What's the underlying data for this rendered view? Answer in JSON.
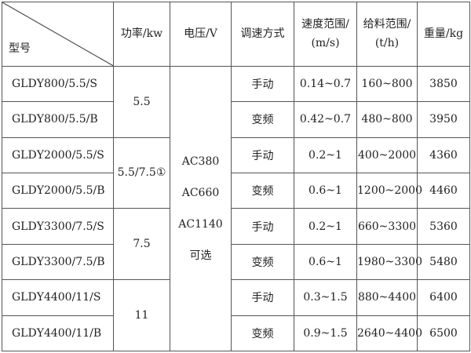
{
  "headers": {
    "model": "型号",
    "power": "功率/kw",
    "voltage": "电压/V",
    "speed_mode": "调速方式",
    "speed_range_1": "速度范围/",
    "speed_range_2": "(m/s)",
    "feed_range_1": "给料范围/",
    "feed_range_2": "(t/h)",
    "weight": "重量/kg"
  },
  "power_groups": [
    "5.5",
    "5.5/7.5①",
    "7.5",
    "11"
  ],
  "voltage": [
    "AC380",
    "AC660",
    "AC1140",
    "可选"
  ],
  "rows": [
    {
      "model": "GLDY800/5.5/S",
      "mode": "手动",
      "speed": "0.14~0.7",
      "feed": "160~800",
      "weight": "3850"
    },
    {
      "model": "GLDY800/5.5/B",
      "mode": "变频",
      "speed": "0.42~0.7",
      "feed": "480~800",
      "weight": "3950"
    },
    {
      "model": "GLDY2000/5.5/S",
      "mode": "手动",
      "speed": "0.2~1",
      "feed": "400~2000",
      "weight": "4360"
    },
    {
      "model": "GLDY2000/5.5/B",
      "mode": "变频",
      "speed": "0.6~1",
      "feed": "1200~2000",
      "weight": "4460"
    },
    {
      "model": "GLDY3300/7.5/S",
      "mode": "手动",
      "speed": "0.2~1",
      "feed": "660~3300",
      "weight": "5360"
    },
    {
      "model": "GLDY3300/7.5/B",
      "mode": "变频",
      "speed": "0.6~1",
      "feed": "1980~3300",
      "weight": "5480"
    },
    {
      "model": "GLDY4400/11/S",
      "mode": "手动",
      "speed": "0.3~1.5",
      "feed": "880~4400",
      "weight": "6400"
    },
    {
      "model": "GLDY4400/11/B",
      "mode": "变频",
      "speed": "0.9~1.5",
      "feed": "2640~4400",
      "weight": "6500"
    }
  ]
}
